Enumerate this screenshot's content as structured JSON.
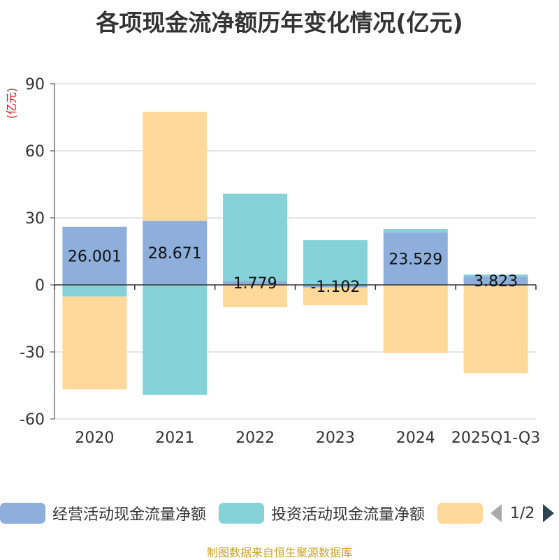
{
  "title": "各项现金流净额历年变化情况(亿元)",
  "source_note": "制图数据来自恒生聚源数据库",
  "legend": {
    "items": [
      {
        "label": "经营活动现金流量净额",
        "color": "#8EAEDB"
      },
      {
        "label": "投资活动现金流量净额",
        "color": "#85D3D8"
      },
      {
        "label": "",
        "color": "#FFD99A"
      }
    ],
    "page": "1/2"
  },
  "chart_data": {
    "type": "bar",
    "stacked": true,
    "unit_label": "(亿元)",
    "categories": [
      "2020",
      "2021",
      "2022",
      "2023",
      "2024",
      "2025Q1-Q3"
    ],
    "ylim": [
      -60,
      90
    ],
    "yticks": [
      -60,
      -30,
      0,
      30,
      60,
      90
    ],
    "grid": true,
    "legend_position": "bottom",
    "series": [
      {
        "name": "经营活动现金流量净额",
        "color": "#8EAEDB",
        "values": [
          26.001,
          28.671,
          1.779,
          -1.102,
          23.529,
          3.823
        ],
        "labels": [
          "26.001",
          "28.671",
          "1.779",
          "-1.102",
          "23.529",
          "3.823"
        ]
      },
      {
        "name": "投资活动现金流量净额",
        "color": "#85D3D8",
        "values": [
          -5.2,
          -49.3,
          39.0,
          20.0,
          1.5,
          0.8
        ]
      },
      {
        "color": "#FFD99A",
        "values": [
          -41.5,
          48.8,
          -10.0,
          -8.0,
          -30.5,
          -39.5
        ]
      }
    ]
  }
}
